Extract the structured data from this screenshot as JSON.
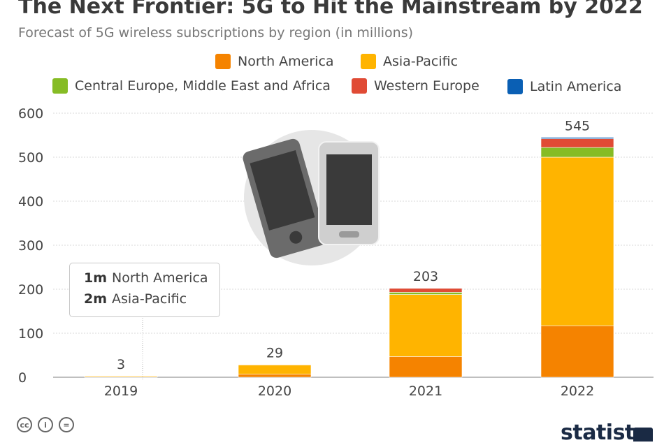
{
  "header": {
    "title": "The Next Frontier: 5G to Hit the Mainstream by 2022",
    "subtitle": "Forecast of 5G wireless subscriptions by region (in millions)"
  },
  "colors": {
    "north_america": "#f58300",
    "asia_pacific": "#ffb400",
    "cemea": "#86bc25",
    "western_europe": "#e04b35",
    "latin_america": "#0a5fb4",
    "gridline": "#d8d8d8",
    "axis": "#999999"
  },
  "legend": [
    {
      "label": "North America",
      "color": "#f58300"
    },
    {
      "label": "Asia-Pacific",
      "color": "#ffb400"
    },
    {
      "label": "Central Europe, Middle East and Africa",
      "color": "#86bc25"
    },
    {
      "label": "Western Europe",
      "color": "#e04b35"
    },
    {
      "label": "Latin America",
      "color": "#0a5fb4"
    }
  ],
  "chart_data": {
    "type": "bar",
    "stacked": true,
    "categories": [
      "2019",
      "2020",
      "2021",
      "2022"
    ],
    "series": [
      {
        "name": "North America",
        "values": [
          1,
          7,
          47,
          117
        ]
      },
      {
        "name": "Asia-Pacific",
        "values": [
          2,
          21,
          141,
          383
        ]
      },
      {
        "name": "Central Europe, Middle East and Africa",
        "values": [
          0,
          0,
          5,
          22
        ]
      },
      {
        "name": "Western Europe",
        "values": [
          0,
          1,
          9,
          20
        ]
      },
      {
        "name": "Latin America",
        "values": [
          0,
          0,
          1,
          3
        ]
      }
    ],
    "totals": [
      "3",
      "29",
      "203",
      "545"
    ],
    "yticks": [
      0,
      100,
      200,
      300,
      400,
      500,
      600
    ],
    "ylim": [
      0,
      600
    ],
    "grid": true,
    "legend_position": "top"
  },
  "callout": {
    "rows": [
      {
        "value": "1m",
        "label": "North America"
      },
      {
        "value": "2m",
        "label": "Asia-Pacific"
      }
    ]
  },
  "footer": {
    "license_icons": [
      "cc",
      "by",
      "nd"
    ],
    "brand": "statista"
  }
}
